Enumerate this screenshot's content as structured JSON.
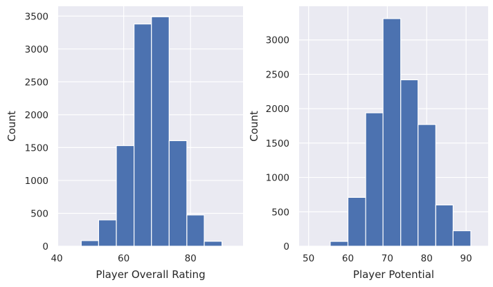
{
  "figure": {
    "background": "#ffffff",
    "plot_background": "#eaeaf2",
    "grid_color": "#ffffff",
    "bar_color": "#4c72b0",
    "bar_edge": "#ffffff"
  },
  "chart_data": [
    {
      "type": "bar",
      "subtype": "histogram",
      "title": "",
      "xlabel": "Player Overall Rating",
      "ylabel": "Count",
      "xlim": [
        40.4,
        95.7
      ],
      "ylim": [
        0,
        3650
      ],
      "xticks": [
        40,
        60,
        80
      ],
      "yticks": [
        0,
        500,
        1000,
        1500,
        2000,
        2500,
        3000,
        3500
      ],
      "grid": true,
      "bins": [
        {
          "x0": 47.3,
          "x1": 52.5,
          "value": 85
        },
        {
          "x0": 52.5,
          "x1": 57.8,
          "value": 400
        },
        {
          "x0": 57.8,
          "x1": 63.1,
          "value": 1530
        },
        {
          "x0": 63.1,
          "x1": 68.3,
          "value": 3380
        },
        {
          "x0": 68.3,
          "x1": 73.6,
          "value": 3490
        },
        {
          "x0": 73.6,
          "x1": 78.9,
          "value": 1605
        },
        {
          "x0": 78.9,
          "x1": 84.1,
          "value": 475
        },
        {
          "x0": 84.1,
          "x1": 89.4,
          "value": 75
        }
      ]
    },
    {
      "type": "bar",
      "subtype": "histogram",
      "title": "",
      "xlabel": "Player Potential",
      "ylabel": "Count",
      "xlim": [
        47.6,
        95.6
      ],
      "ylim": [
        0,
        3490
      ],
      "xticks": [
        50,
        60,
        70,
        80,
        90
      ],
      "yticks": [
        0,
        500,
        1000,
        1500,
        2000,
        2500,
        3000
      ],
      "grid": true,
      "bins": [
        {
          "x0": 51.1,
          "x1": 55.5,
          "value": 0
        },
        {
          "x0": 55.5,
          "x1": 60.0,
          "value": 70
        },
        {
          "x0": 60.0,
          "x1": 64.5,
          "value": 710
        },
        {
          "x0": 64.5,
          "x1": 68.9,
          "value": 1940
        },
        {
          "x0": 68.9,
          "x1": 73.4,
          "value": 3310
        },
        {
          "x0": 73.4,
          "x1": 77.8,
          "value": 2420
        },
        {
          "x0": 77.8,
          "x1": 82.3,
          "value": 1770
        },
        {
          "x0": 82.3,
          "x1": 86.7,
          "value": 600
        },
        {
          "x0": 86.7,
          "x1": 91.2,
          "value": 225
        },
        {
          "x0": 91.2,
          "x1": 95.6,
          "value": 0
        }
      ]
    }
  ]
}
